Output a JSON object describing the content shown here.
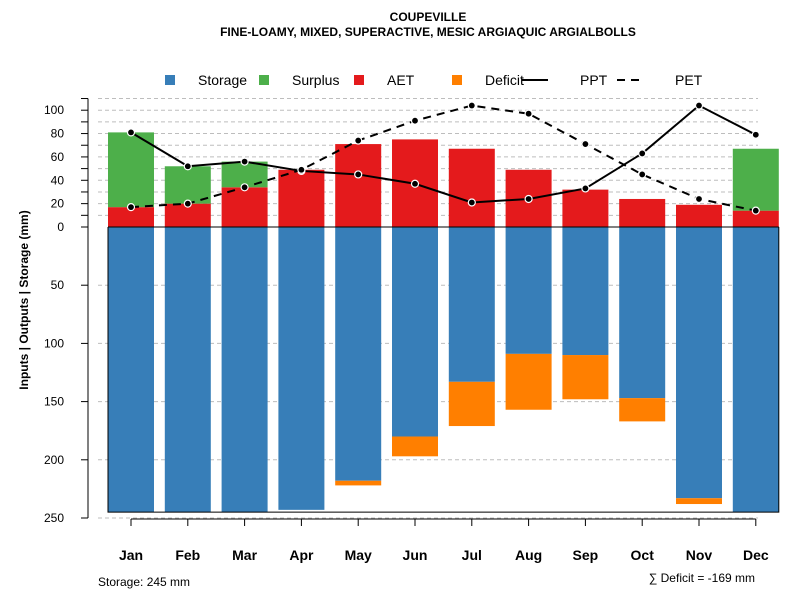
{
  "chart_data": {
    "type": "bar",
    "title": "COUPEVILLE",
    "subtitle": "FINE-LOAMY, MIXED, SUPERACTIVE, MESIC ARGIAQUIC ARGIALBOLLS",
    "ylabel": "Inputs | Outputs | Storage     (mm)",
    "categories": [
      "Jan",
      "Feb",
      "Mar",
      "Apr",
      "May",
      "Jun",
      "Jul",
      "Aug",
      "Sep",
      "Oct",
      "Nov",
      "Dec"
    ],
    "upper_ticks": [
      "0",
      "20",
      "40",
      "60",
      "80",
      "100"
    ],
    "upper_tick_values": [
      0,
      20,
      40,
      60,
      80,
      100
    ],
    "lower_ticks": [
      "50",
      "100",
      "150",
      "200",
      "250"
    ],
    "lower_tick_values": [
      50,
      100,
      150,
      200,
      250
    ],
    "ylim_upper": [
      0,
      110
    ],
    "ylim_lower": [
      0,
      250
    ],
    "series": [
      {
        "name": "Storage",
        "color": "#377EB8",
        "values": [
          245,
          245,
          245,
          243,
          218,
          180,
          133,
          109,
          110,
          147,
          233,
          245
        ]
      },
      {
        "name": "Deficit",
        "color": "#FF7F00",
        "values": [
          0,
          0,
          0,
          0,
          4,
          17,
          38,
          48,
          38,
          20,
          5,
          0
        ]
      },
      {
        "name": "AET",
        "color": "#E41A1C",
        "values": [
          17,
          20,
          34,
          49,
          71,
          75,
          67,
          49,
          32,
          24,
          19,
          14
        ]
      },
      {
        "name": "Surplus",
        "color": "#4DAF4A",
        "values": [
          64,
          32,
          22,
          0,
          0,
          0,
          0,
          0,
          0,
          0,
          0,
          53
        ]
      },
      {
        "name": "PPT",
        "color": "#000000",
        "style": "solid",
        "values": [
          81,
          52,
          56,
          48,
          45,
          37,
          21,
          24,
          33,
          63,
          104,
          79
        ]
      },
      {
        "name": "PET",
        "color": "#000000",
        "style": "dashed",
        "values": [
          17,
          20,
          34,
          49,
          74,
          91,
          104,
          97,
          71,
          45,
          24,
          14
        ]
      }
    ],
    "legend": [
      {
        "name": "Storage",
        "kind": "box",
        "color": "#377EB8"
      },
      {
        "name": "Surplus",
        "kind": "box",
        "color": "#4DAF4A"
      },
      {
        "name": "AET",
        "kind": "box",
        "color": "#E41A1C"
      },
      {
        "name": "Deficit",
        "kind": "box",
        "color": "#FF7F00"
      },
      {
        "name": "PPT",
        "kind": "line-solid",
        "color": "#000000"
      },
      {
        "name": "PET",
        "kind": "line-dashed",
        "color": "#000000"
      }
    ],
    "legend_position": "top",
    "grid": true
  },
  "footer": {
    "storage_note": "Storage: 245 mm",
    "deficit_note": "∑ Deficit = -169 mm"
  }
}
